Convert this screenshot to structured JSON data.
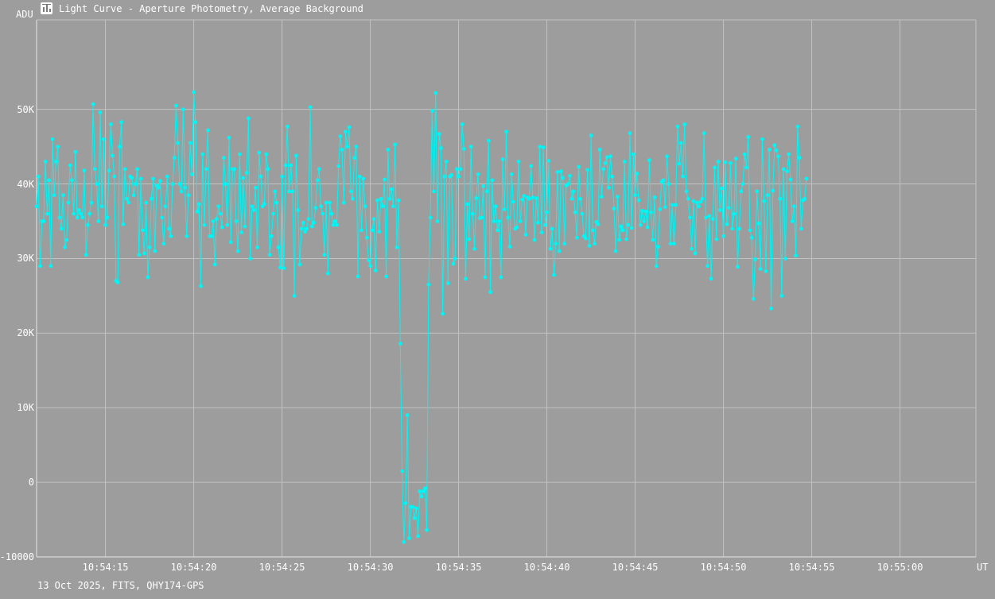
{
  "window": {
    "title": "Light Curve - Aperture Photometry, Average Background",
    "icon": "chart-window-icon"
  },
  "footer": {
    "text": "13 Oct 2025, FITS, QHY174-GPS"
  },
  "colors": {
    "background": "#9d9d9d",
    "grid": "#c2c2c2",
    "series": "#00f5f5",
    "text": "#ffffff"
  },
  "chart_data": {
    "type": "line",
    "title": "Light Curve - Aperture Photometry, Average Background",
    "ylabel": "ADU",
    "xlabel": "UT",
    "ylim": [
      -10000,
      62000
    ],
    "xlim": [
      "10:54:11.1",
      "10:55:04.3"
    ],
    "grid": true,
    "y_ticks": [
      {
        "value": -10000,
        "label": "-10000"
      },
      {
        "value": 0,
        "label": "0"
      },
      {
        "value": 10000,
        "label": "10K"
      },
      {
        "value": 20000,
        "label": "20K"
      },
      {
        "value": 30000,
        "label": "30K"
      },
      {
        "value": 40000,
        "label": "40K"
      },
      {
        "value": 50000,
        "label": "50K"
      }
    ],
    "x_ticks": [
      "10:54:15",
      "10:54:20",
      "10:54:25",
      "10:54:30",
      "10:54:35",
      "10:54:40",
      "10:54:45",
      "10:54:50",
      "10:54:55",
      "10:55:00"
    ],
    "x_start": "10:54:11.1",
    "x_step_seconds": 0.1,
    "series": [
      {
        "values": [
          37000,
          41000,
          29000,
          35000,
          35000,
          43000,
          36000,
          40500,
          29000,
          46000,
          38500,
          43000,
          45000,
          35500,
          34000,
          38500,
          31500,
          32500,
          37500,
          42500,
          40500,
          36000,
          44300,
          35500,
          36500,
          36000,
          35500,
          41800,
          30500,
          34500,
          36000,
          37500,
          50700,
          42000,
          40000,
          35000,
          49600,
          37000,
          46000,
          34500,
          35500,
          41800,
          48000,
          43800,
          41000,
          27000,
          26800,
          45000,
          48300,
          34600,
          42000,
          38000,
          37500,
          41000,
          40800,
          38500,
          40000,
          42000,
          30500,
          40700,
          33800,
          30700,
          37500,
          27500,
          31500,
          38000,
          40700,
          31000,
          39800,
          39500,
          40400,
          35500,
          32000,
          37000,
          41000,
          34000,
          33000,
          40000,
          43500,
          50500,
          45500,
          40000,
          39000,
          50000,
          39500,
          33000,
          38500,
          45500,
          41300,
          52300,
          48300,
          36300,
          37300,
          26300,
          44000,
          34500,
          42000,
          47200,
          33000,
          33000,
          35000,
          29200,
          35300,
          37000,
          36000,
          34200,
          43500,
          40000,
          34500,
          46200,
          32200,
          42000,
          42000,
          35000,
          31000,
          44000,
          33500,
          40800,
          34300,
          41500,
          48800,
          30000,
          37000,
          36500,
          39500,
          31500,
          44200,
          41000,
          37000,
          37300,
          44000,
          42000,
          30500,
          33000,
          36000,
          39000,
          37500,
          31500,
          28800,
          41000,
          28700,
          42500,
          47700,
          39000,
          42500,
          39000,
          25000,
          43800,
          36500,
          29200,
          34000,
          34800,
          33600,
          34000,
          35300,
          50300,
          34300,
          34800,
          36800,
          40500,
          42000,
          37000,
          36000,
          30500,
          37500,
          28000,
          37500,
          36000,
          34500,
          35000,
          34500,
          42400,
          46400,
          44600,
          37500,
          47000,
          45000,
          47600,
          39000,
          38000,
          43500,
          45000,
          27600,
          41000,
          33800,
          40700,
          37000,
          32800,
          29800,
          29000,
          33800,
          35300,
          28400,
          37800,
          33600,
          38000,
          37000,
          40600,
          27600,
          44600,
          38000,
          39300,
          37000,
          45300,
          31500,
          37800,
          18600,
          1500,
          -8000,
          -2800,
          9000,
          -7500,
          -3300,
          -3300,
          -4800,
          -3500,
          -7200,
          -1200,
          -1900,
          -1200,
          -800,
          -6400,
          26500,
          35500,
          49800,
          39000,
          52200,
          35000,
          46700,
          44800,
          22600,
          41000,
          43000,
          26700,
          41000,
          41200,
          29300,
          30000,
          42000,
          41000,
          42000,
          48000,
          44700,
          27300,
          37300,
          32600,
          45000,
          36000,
          31300,
          38100,
          41300,
          35400,
          35500,
          39700,
          27500,
          39000,
          45800,
          25500,
          40500,
          35000,
          37000,
          33800,
          35000,
          27500,
          43300,
          36600,
          47000,
          35500,
          31600,
          41300,
          37600,
          34000,
          34200,
          43000,
          35000,
          37900,
          38400,
          33200,
          38200,
          38000,
          42400,
          38200,
          32500,
          38100,
          34800,
          45000,
          33500,
          44900,
          34500,
          36200,
          43100,
          31300,
          34000,
          27800,
          32000,
          41600,
          31000,
          41700,
          40800,
          32000,
          39800,
          40000,
          41100,
          38000,
          39000,
          36200,
          32800,
          42300,
          38000,
          36000,
          33000,
          32700,
          41900,
          31700,
          46500,
          33800,
          32000,
          34900,
          34600,
          44600,
          38300,
          42000,
          42800,
          43600,
          39500,
          43700,
          41000,
          36700,
          31000,
          38300,
          32500,
          34300,
          33800,
          43000,
          32600,
          34500,
          46800,
          34100,
          44000,
          38500,
          41400,
          37800,
          34500,
          36400,
          35000,
          36300,
          34200,
          43200,
          36200,
          32500,
          38200,
          29000,
          31600,
          36600,
          40300,
          40500,
          36900,
          43700,
          40000,
          32000,
          37200,
          32000,
          37200,
          47700,
          42700,
          45500,
          41000,
          48000,
          39000,
          38000,
          35500,
          31300,
          37700,
          30700,
          37500,
          37000,
          37600,
          38000,
          46800,
          35500,
          29000,
          35700,
          27300,
          35300,
          42200,
          32600,
          43000,
          36500,
          39400,
          33000,
          42900,
          34600,
          36800,
          42800,
          34000,
          36000,
          43400,
          28900,
          34000,
          39000,
          40000,
          44000,
          42200,
          46300,
          33800,
          32800,
          24600,
          29900,
          39000,
          34700,
          28600,
          46000,
          37700,
          28300,
          38500,
          44600,
          23300,
          39100,
          45200,
          44500,
          43700,
          38000,
          25000,
          42000,
          30000,
          41700,
          44000,
          40600,
          35000,
          37000,
          30400,
          47700,
          43500,
          34000,
          37800,
          38000,
          40700
        ]
      }
    ]
  }
}
